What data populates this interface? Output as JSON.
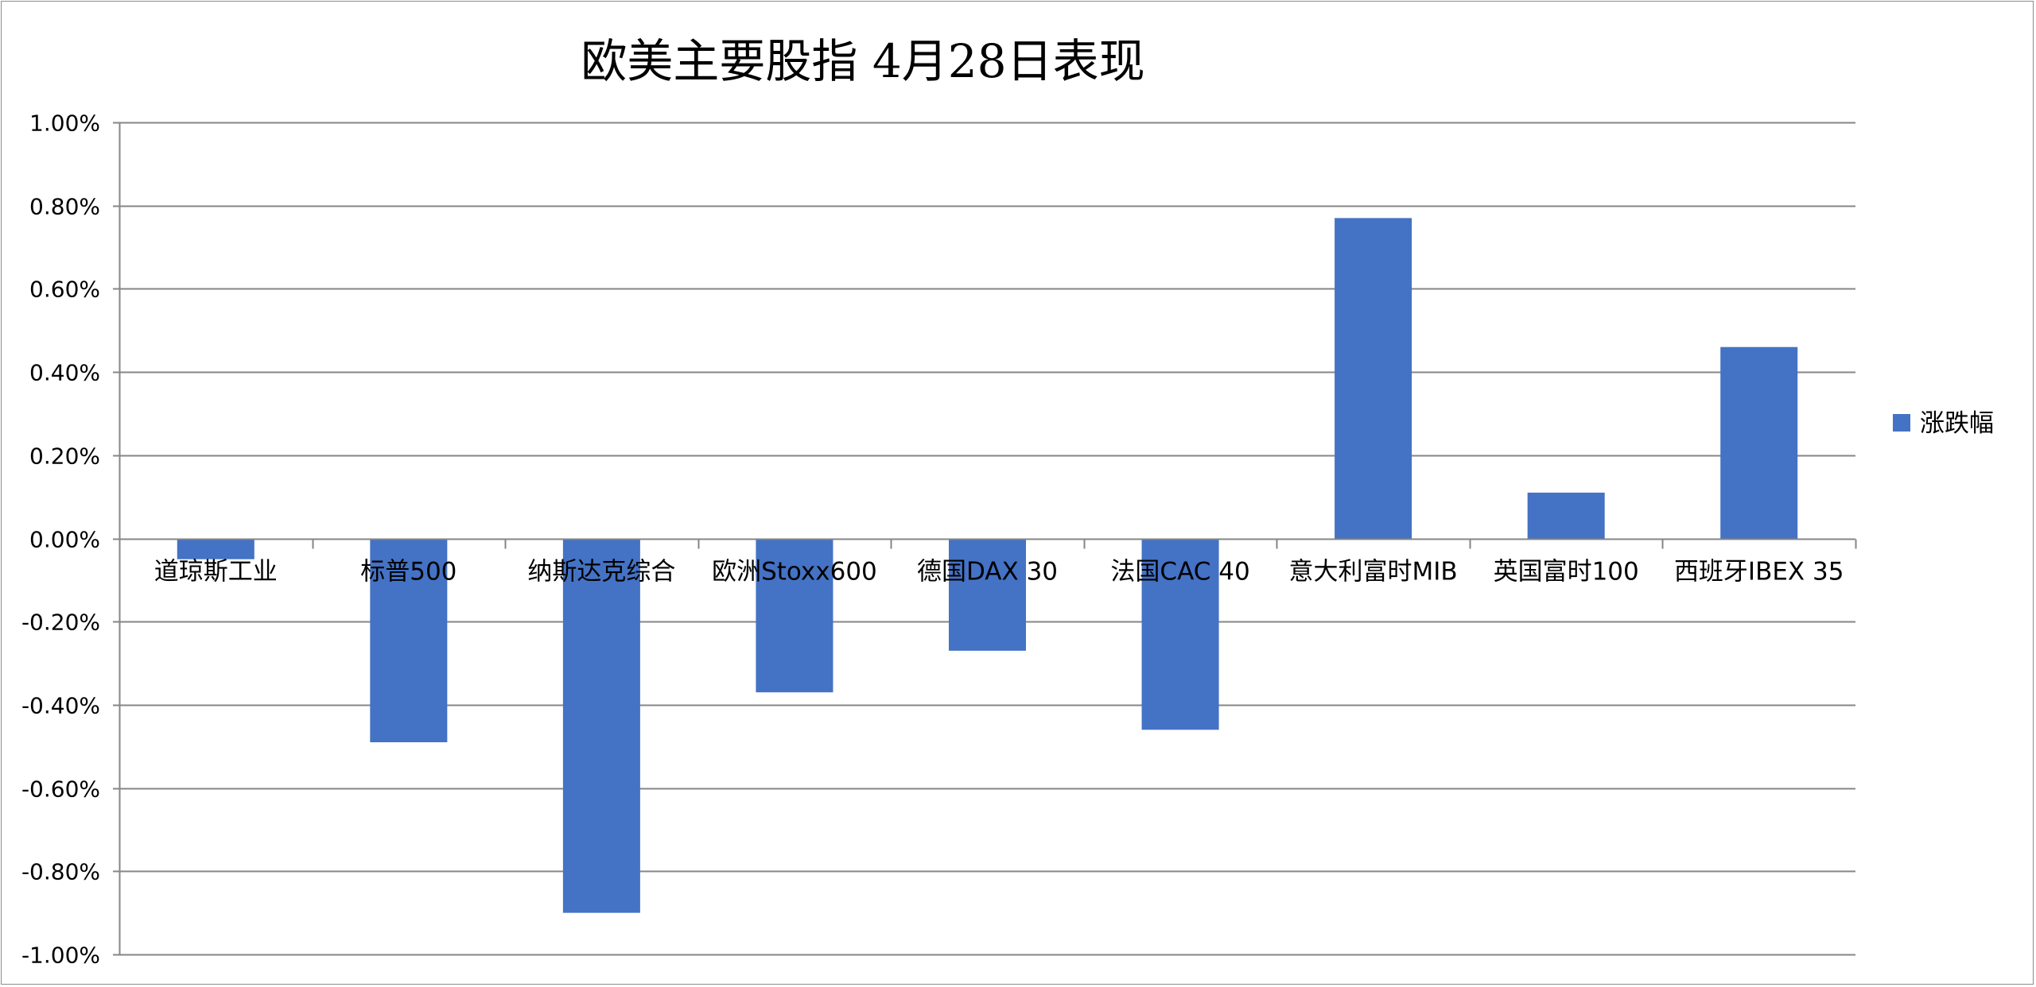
{
  "chart_data": {
    "type": "bar",
    "title": "欧美主要股指 4月28日表现",
    "xlabel": "",
    "ylabel": "",
    "categories": [
      "道琼斯工业",
      "标普500",
      "纳斯达克综合",
      "欧洲Stoxx600",
      "德国DAX 30",
      "法国CAC 40",
      "意大利富时MIB",
      "英国富时100",
      "西班牙IBEX 35"
    ],
    "series": [
      {
        "name": "涨跌幅",
        "values": [
          -0.0005,
          -0.0049,
          -0.009,
          -0.0037,
          -0.0027,
          -0.0046,
          0.0077,
          0.0011,
          0.0046
        ],
        "color": "#4472C4"
      }
    ],
    "ylim": [
      -0.01,
      0.01
    ],
    "yticks": [
      0.01,
      0.008,
      0.006,
      0.004,
      0.002,
      0,
      -0.002,
      -0.004,
      -0.006,
      -0.008,
      -0.01
    ],
    "ytick_labels": [
      "1.00%",
      "0.80%",
      "0.60%",
      "0.40%",
      "0.20%",
      "0.00%",
      "-0.20%",
      "-0.40%",
      "-0.60%",
      "-0.80%",
      "-1.00%"
    ],
    "grid": true,
    "legend_position": "right",
    "colors": {
      "bar": "#4472C4",
      "grid": "#868686",
      "axis": "#868686"
    }
  }
}
